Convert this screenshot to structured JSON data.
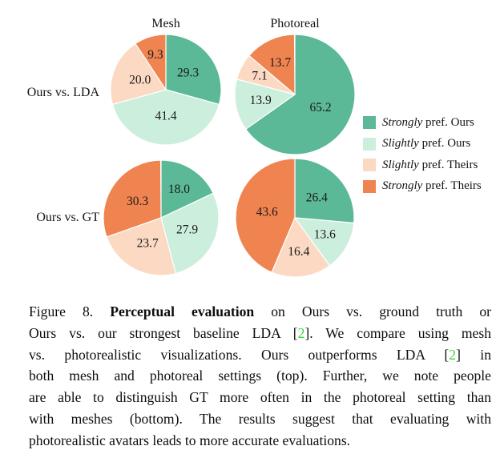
{
  "figure": {
    "col_titles": [
      "Mesh",
      "Photoreal"
    ],
    "row_labels": [
      "Ours vs. LDA",
      "Ours vs. GT"
    ],
    "legend": [
      {
        "emph": "Strongly",
        "rest": " pref. Ours"
      },
      {
        "emph": "Slightly",
        "rest": " pref. Ours"
      },
      {
        "emph": "Slightly",
        "rest": " pref. Theirs"
      },
      {
        "emph": "Strongly",
        "rest": " pref. Theirs"
      }
    ]
  },
  "chart_data": {
    "type": "pie",
    "layout": "2x2 grid of pies; column titles on top; row labels at left; legend at right",
    "start_angle_deg": 0,
    "direction": "clockwise",
    "segment_labels": [
      "Strongly pref. Ours",
      "Slightly pref. Ours",
      "Slightly pref. Theirs",
      "Strongly pref. Theirs"
    ],
    "segment_colors": [
      "#5bb998",
      "#cceedd",
      "#fbd9c3",
      "#f08450"
    ],
    "pies": [
      {
        "row": "Ours vs. LDA",
        "column": "Mesh",
        "values": [
          29.3,
          41.4,
          20.0,
          9.3
        ],
        "value_labels": [
          "29.3",
          "41.4",
          "20.0",
          "9.3"
        ]
      },
      {
        "row": "Ours vs. LDA",
        "column": "Photoreal",
        "values": [
          65.2,
          13.9,
          7.1,
          13.7
        ],
        "value_labels": [
          "65.2",
          "13.9",
          "7.1",
          "13.7"
        ]
      },
      {
        "row": "Ours vs. GT",
        "column": "Mesh",
        "values": [
          18.0,
          27.9,
          23.7,
          30.3
        ],
        "value_labels": [
          "18.0",
          "27.9",
          "23.7",
          "30.3"
        ]
      },
      {
        "row": "Ours vs. GT",
        "column": "Photoreal",
        "values": [
          26.4,
          13.6,
          16.4,
          43.6
        ],
        "value_labels": [
          "26.4",
          "13.6",
          "16.4",
          "43.6"
        ]
      }
    ]
  },
  "caption": {
    "ref_color": "#3dd33d",
    "lines": [
      [
        {
          "t": "Figure 8.  ",
          "s": "n"
        },
        {
          "t": "Perceptual evaluation",
          "s": "b"
        },
        {
          "t": " on Ours vs. ground truth or",
          "s": "n"
        }
      ],
      [
        {
          "t": "Ours vs. our strongest baseline LDA [",
          "s": "n"
        },
        {
          "t": "2",
          "s": "r"
        },
        {
          "t": "]. We compare using mesh",
          "s": "n"
        }
      ],
      [
        {
          "t": "vs. photorealistic visualizations.  Ours outperforms LDA [",
          "s": "n"
        },
        {
          "t": "2",
          "s": "r"
        },
        {
          "t": "] in",
          "s": "n"
        }
      ],
      [
        {
          "t": "both mesh and photoreal settings (top).  Further, we note people",
          "s": "n"
        }
      ],
      [
        {
          "t": "are able to distinguish GT more often in the photoreal setting than",
          "s": "n"
        }
      ],
      [
        {
          "t": "with meshes (bottom).  The results suggest that evaluating with",
          "s": "n"
        }
      ],
      [
        {
          "t": "photorealistic avatars leads to more accurate evaluations.",
          "s": "n"
        }
      ]
    ]
  }
}
